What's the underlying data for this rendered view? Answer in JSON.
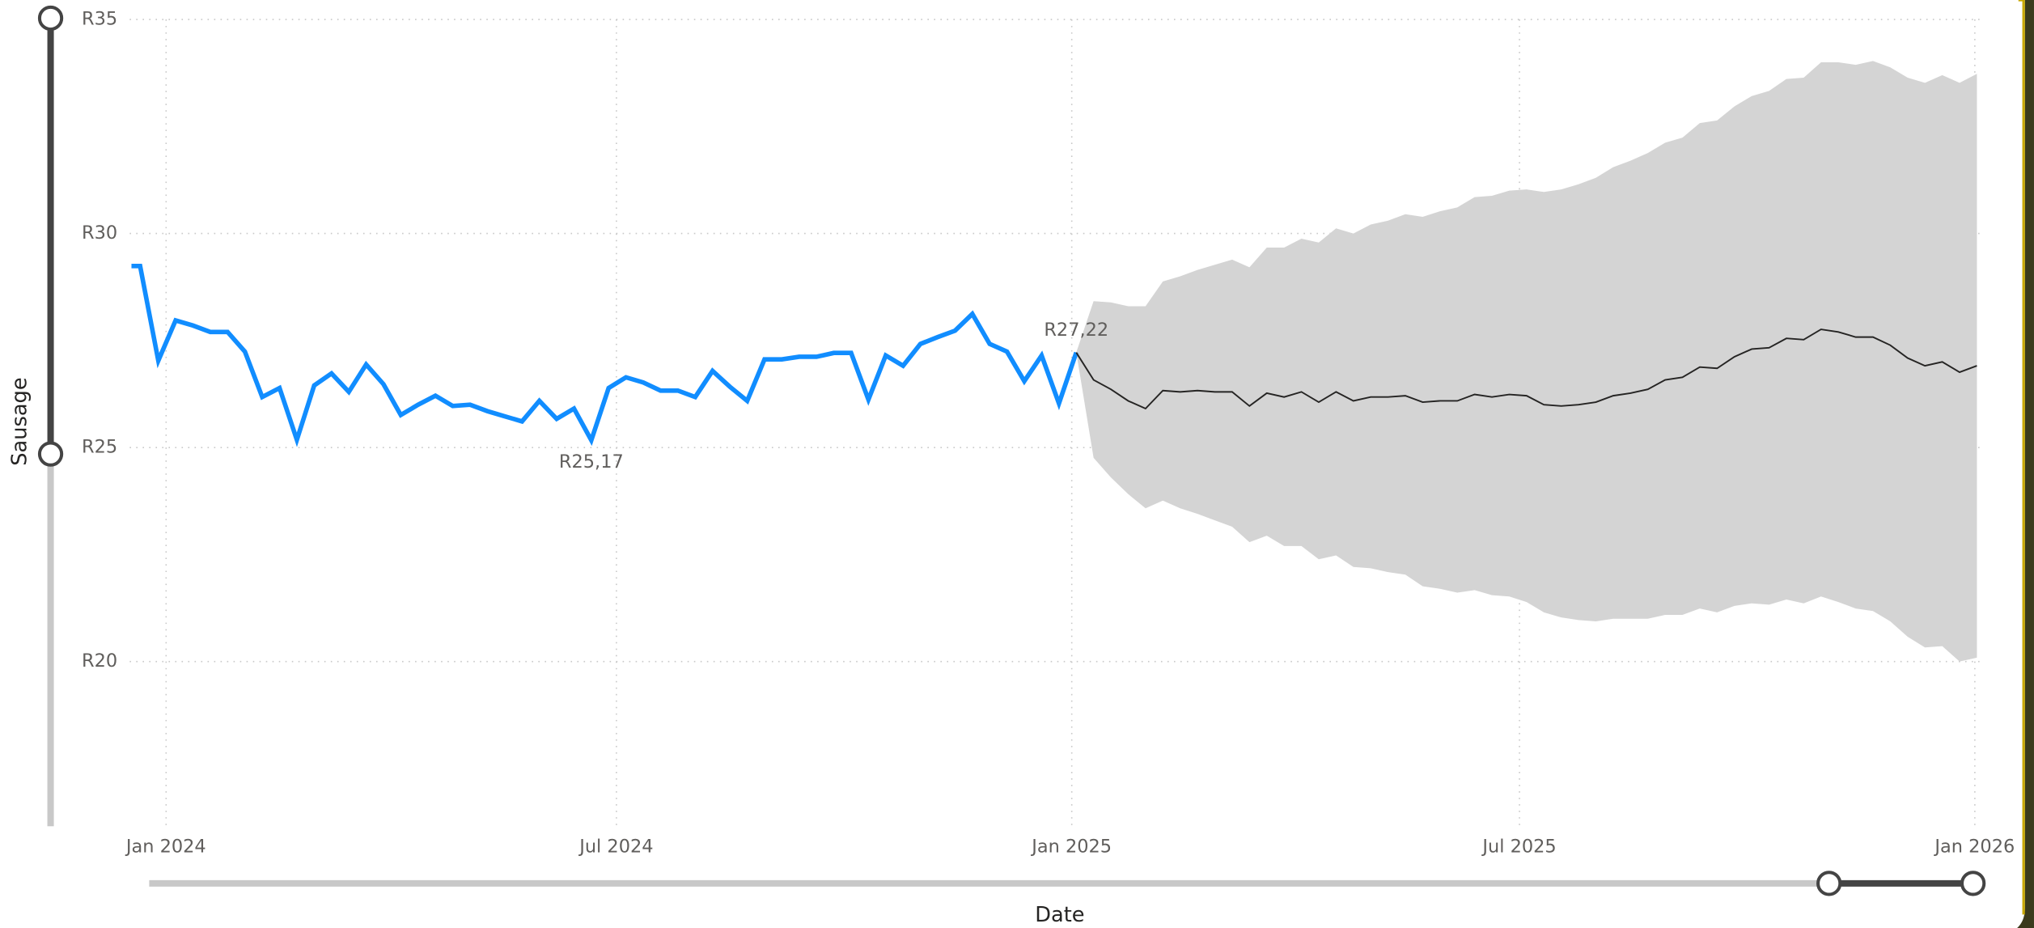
{
  "chart_data": {
    "type": "line",
    "y_label": "Sausage",
    "x_label": "Date",
    "ylim": [
      16.2,
      35
    ],
    "yticks": [
      {
        "value": 20,
        "label": "R20"
      },
      {
        "value": 25,
        "label": "R25"
      },
      {
        "value": 30,
        "label": "R30"
      },
      {
        "value": 35,
        "label": "R35"
      }
    ],
    "xlim": [
      -2.1,
      105
    ],
    "xticks": [
      {
        "value": 0,
        "label": "Jan 2024"
      },
      {
        "value": 26,
        "label": "Jul 2024"
      },
      {
        "value": 52.29,
        "label": "Jan 2025"
      },
      {
        "value": 78.14,
        "label": "Jul 2025"
      },
      {
        "value": 104.43,
        "label": "Jan 2026"
      }
    ],
    "grid": true,
    "series": [
      {
        "color": "#118dff",
        "x": [
          -2,
          -1.5,
          -0.45,
          0.55,
          1.55,
          2.55,
          3.55,
          4.55,
          5.55,
          6.55,
          7.55,
          8.55,
          9.55,
          10.55,
          11.55,
          12.55,
          13.55,
          14.55,
          15.55,
          16.55,
          17.55,
          18.55,
          19.55,
          20.55,
          21.55,
          22.55,
          23.55,
          24.55,
          25.55,
          26.55,
          27.55,
          28.55,
          29.55,
          30.55,
          31.55,
          32.55,
          33.55,
          34.55,
          35.55,
          36.55,
          37.55,
          38.55,
          39.55,
          40.55,
          41.55,
          42.55,
          43.55,
          44.55,
          45.55,
          46.55,
          47.55,
          48.55,
          49.55,
          50.55,
          51.55,
          52.55
        ],
        "values": [
          29.24,
          29.24,
          27.03,
          27.97,
          27.85,
          27.7,
          27.7,
          27.24,
          26.18,
          26.39,
          25.18,
          26.45,
          26.73,
          26.3,
          26.94,
          26.48,
          25.76,
          26.0,
          26.21,
          25.97,
          26.0,
          25.85,
          25.73,
          25.61,
          26.09,
          25.67,
          25.91,
          25.17,
          26.39,
          26.64,
          26.52,
          26.33,
          26.33,
          26.18,
          26.79,
          26.42,
          26.09,
          27.06,
          27.06,
          27.12,
          27.12,
          27.21,
          27.21,
          26.12,
          27.15,
          26.91,
          27.42,
          27.58,
          27.73,
          28.12,
          27.42,
          27.24,
          26.55,
          27.15,
          26.03,
          27.22
        ],
        "value_labels": [
          null,
          null,
          null,
          null,
          null,
          null,
          null,
          null,
          null,
          null,
          null,
          null,
          null,
          null,
          null,
          null,
          null,
          null,
          null,
          null,
          null,
          null,
          null,
          null,
          null,
          null,
          null,
          "R25,17",
          null,
          null,
          null,
          null,
          null,
          null,
          null,
          null,
          null,
          null,
          null,
          null,
          null,
          null,
          null,
          null,
          null,
          null,
          null,
          null,
          null,
          null,
          null,
          null,
          null,
          null,
          null,
          "R27,22"
        ]
      },
      {
        "color": "#252423",
        "band_color": "#d4d4d4",
        "x": [
          52.55,
          53.55,
          54.55,
          55.55,
          56.55,
          57.55,
          58.55,
          59.55,
          60.55,
          61.55,
          62.55,
          63.55,
          64.55,
          65.55,
          66.55,
          67.55,
          68.55,
          69.55,
          70.55,
          71.55,
          72.55,
          73.55,
          74.55,
          75.55,
          76.55,
          77.55,
          78.55,
          79.55,
          80.55,
          81.55,
          82.55,
          83.55,
          84.55,
          85.55,
          86.55,
          87.55,
          88.55,
          89.55,
          90.55,
          91.55,
          92.55,
          93.55,
          94.55,
          95.55,
          96.55,
          97.55,
          98.55,
          99.55,
          100.55,
          101.55,
          102.55,
          103.55,
          104.55
        ],
        "values": [
          27.22,
          26.58,
          26.36,
          26.09,
          25.91,
          26.33,
          26.3,
          26.33,
          26.3,
          26.3,
          25.97,
          26.27,
          26.18,
          26.3,
          26.06,
          26.3,
          26.09,
          26.18,
          26.18,
          26.21,
          26.06,
          26.09,
          26.09,
          26.24,
          26.18,
          26.24,
          26.21,
          26.0,
          25.97,
          26.0,
          26.06,
          26.21,
          26.27,
          26.36,
          26.58,
          26.64,
          26.88,
          26.85,
          27.12,
          27.3,
          27.33,
          27.55,
          27.52,
          27.76,
          27.7,
          27.58,
          27.58,
          27.39,
          27.09,
          26.91,
          27.0,
          26.76,
          26.91
        ],
        "upper": [
          27.22,
          28.42,
          28.39,
          28.3,
          28.3,
          28.88,
          29.0,
          29.15,
          29.27,
          29.39,
          29.21,
          29.67,
          29.67,
          29.88,
          29.79,
          30.12,
          30.0,
          30.21,
          30.3,
          30.45,
          30.39,
          30.52,
          30.61,
          30.85,
          30.88,
          31.0,
          31.03,
          30.97,
          31.03,
          31.15,
          31.3,
          31.55,
          31.7,
          31.88,
          32.12,
          32.24,
          32.58,
          32.64,
          32.97,
          33.21,
          33.33,
          33.61,
          33.64,
          34.0,
          34.0,
          33.94,
          34.03,
          33.88,
          33.64,
          33.52,
          33.7,
          33.52,
          33.73
        ],
        "lower": [
          27.22,
          24.76,
          24.3,
          23.91,
          23.58,
          23.76,
          23.58,
          23.45,
          23.3,
          23.15,
          22.79,
          22.94,
          22.7,
          22.7,
          22.39,
          22.48,
          22.21,
          22.18,
          22.09,
          22.03,
          21.76,
          21.7,
          21.61,
          21.67,
          21.55,
          21.52,
          21.39,
          21.15,
          21.03,
          20.97,
          20.94,
          21.0,
          21.0,
          21.0,
          21.09,
          21.09,
          21.24,
          21.15,
          21.3,
          21.36,
          21.33,
          21.45,
          21.36,
          21.52,
          21.39,
          21.24,
          21.18,
          20.94,
          20.58,
          20.33,
          20.36,
          20.0,
          20.09
        ]
      }
    ]
  }
}
